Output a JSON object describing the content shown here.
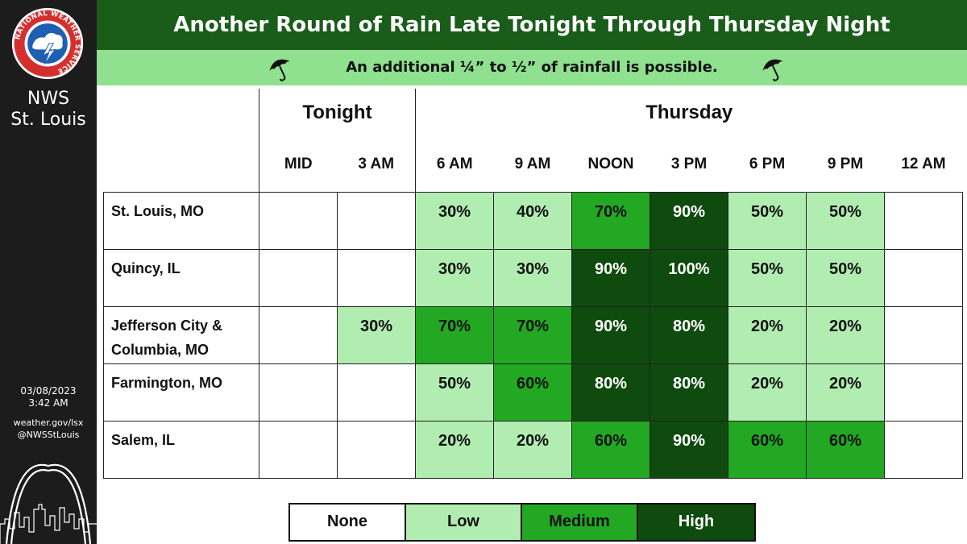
{
  "header": {
    "title": "Another Round of Rain Late Tonight Through Thursday Night",
    "subtitle": "An additional ¼” to ½” of rainfall is possible."
  },
  "sidebar": {
    "logo_text": "NATIONAL WEATHER SERVICE",
    "office_line1": "NWS",
    "office_line2": "St. Louis",
    "issue_date": "03/08/2023",
    "issue_time": "3:42 AM",
    "site_url": "weather.gov/lsx",
    "social_handle": "@NWSStLouis"
  },
  "table": {
    "days": [
      {
        "label": "Tonight",
        "span": 2
      },
      {
        "label": "Thursday",
        "span": 7
      }
    ],
    "times": [
      "MID",
      "3 AM",
      "6 AM",
      "9 AM",
      "NOON",
      "3 PM",
      "6 PM",
      "9 PM",
      "12 AM"
    ],
    "rows": [
      {
        "location": "St. Louis, MO",
        "cells": [
          {
            "value": "",
            "level": "none"
          },
          {
            "value": "",
            "level": "none"
          },
          {
            "value": "30%",
            "level": "low"
          },
          {
            "value": "40%",
            "level": "low"
          },
          {
            "value": "70%",
            "level": "med"
          },
          {
            "value": "90%",
            "level": "high"
          },
          {
            "value": "50%",
            "level": "low"
          },
          {
            "value": "50%",
            "level": "low"
          },
          {
            "value": "",
            "level": "none"
          }
        ]
      },
      {
        "location": "Quincy, IL",
        "cells": [
          {
            "value": "",
            "level": "none"
          },
          {
            "value": "",
            "level": "none"
          },
          {
            "value": "30%",
            "level": "low"
          },
          {
            "value": "30%",
            "level": "low"
          },
          {
            "value": "90%",
            "level": "high"
          },
          {
            "value": "100%",
            "level": "high"
          },
          {
            "value": "50%",
            "level": "low"
          },
          {
            "value": "50%",
            "level": "low"
          },
          {
            "value": "",
            "level": "none"
          }
        ]
      },
      {
        "location": "Jefferson City & Columbia, MO",
        "cells": [
          {
            "value": "",
            "level": "none"
          },
          {
            "value": "30%",
            "level": "low"
          },
          {
            "value": "70%",
            "level": "med"
          },
          {
            "value": "70%",
            "level": "med"
          },
          {
            "value": "90%",
            "level": "high"
          },
          {
            "value": "80%",
            "level": "high"
          },
          {
            "value": "20%",
            "level": "low"
          },
          {
            "value": "20%",
            "level": "low"
          },
          {
            "value": "",
            "level": "none"
          }
        ]
      },
      {
        "location": "Farmington, MO",
        "cells": [
          {
            "value": "",
            "level": "none"
          },
          {
            "value": "",
            "level": "none"
          },
          {
            "value": "50%",
            "level": "low"
          },
          {
            "value": "60%",
            "level": "med"
          },
          {
            "value": "80%",
            "level": "high"
          },
          {
            "value": "80%",
            "level": "high"
          },
          {
            "value": "20%",
            "level": "low"
          },
          {
            "value": "20%",
            "level": "low"
          },
          {
            "value": "",
            "level": "none"
          }
        ]
      },
      {
        "location": "Salem, IL",
        "cells": [
          {
            "value": "",
            "level": "none"
          },
          {
            "value": "",
            "level": "none"
          },
          {
            "value": "20%",
            "level": "low"
          },
          {
            "value": "20%",
            "level": "low"
          },
          {
            "value": "60%",
            "level": "med"
          },
          {
            "value": "90%",
            "level": "high"
          },
          {
            "value": "60%",
            "level": "med"
          },
          {
            "value": "60%",
            "level": "med"
          },
          {
            "value": "",
            "level": "none"
          }
        ]
      }
    ]
  },
  "legend": [
    {
      "label": "None",
      "level": "none"
    },
    {
      "label": "Low",
      "level": "low"
    },
    {
      "label": "Medium",
      "level": "med"
    },
    {
      "label": "High",
      "level": "high"
    }
  ],
  "colors": {
    "title_bar": "#1a5c1a",
    "subtitle_bar": "#8fe08f",
    "none": "#ffffff",
    "low": "#b1edb1",
    "medium": "#22a822",
    "high": "#0f4a0f",
    "sidebar": "#1c1c1c"
  },
  "icons": [
    "nws-logo-icon",
    "umbrella-icon",
    "gateway-arch-skyline-icon"
  ]
}
